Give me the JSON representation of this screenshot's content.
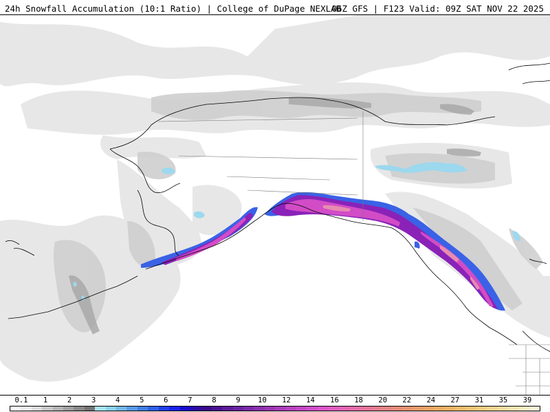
{
  "header": {
    "title_left": "24h Snowfall Accumulation (10:1 Ratio) | College of DuPage NEXLAB",
    "title_right": "06Z GFS | F123 Valid: 09Z SAT NOV 22 2025"
  },
  "colorbar": {
    "labels": [
      "0.1",
      "1",
      "2",
      "3",
      "4",
      "5",
      "6",
      "7",
      "8",
      "9",
      "10",
      "12",
      "14",
      "16",
      "18",
      "20",
      "22",
      "24",
      "27",
      "31",
      "35",
      "39"
    ],
    "colors": [
      "#ffffff",
      "#eeeeee",
      "#dcdcdc",
      "#c8c8c8",
      "#b4b4b4",
      "#a0a0a0",
      "#8a8a8a",
      "#747474",
      "#a6e3f0",
      "#8cd2ec",
      "#74b7e9",
      "#5a9ae6",
      "#3f7ee2",
      "#2e60e6",
      "#1f3ee8",
      "#1722e8",
      "#1a0ad0",
      "#2a0aa8",
      "#3a0a8c",
      "#4a1090",
      "#5c1a98",
      "#6a22a0",
      "#7a2aa6",
      "#8a30ac",
      "#9a36b2",
      "#a83cb8",
      "#b642be",
      "#c448c4",
      "#d04ec8",
      "#dc54c8",
      "#e05cc0",
      "#e264b4",
      "#e46ca8",
      "#e4749c",
      "#e47c90",
      "#e48484",
      "#e48c7a",
      "#e69470",
      "#e89c6a",
      "#eaa466",
      "#ecac64",
      "#eeb466",
      "#f0bc6c",
      "#f2c476",
      "#f4cc82",
      "#f6d490",
      "#f8dca0",
      "#fae4b2",
      "#fcecc4",
      "#fdf4d8"
    ]
  },
  "map": {
    "legend_colors": {
      "light_gray": "#e8e8e8",
      "mid_gray": "#cfcfcf",
      "dark_gray": "#a8a8a8",
      "light_blue": "#9cd8ee",
      "blue": "#3a64e8",
      "purple": "#8a1fb8",
      "magenta": "#d24cc6",
      "pink": "#e58bb0",
      "coast": "#000000"
    }
  }
}
